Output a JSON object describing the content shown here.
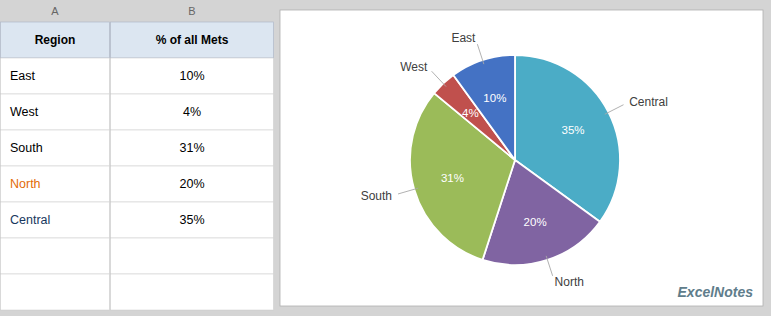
{
  "chart_data": [
    {
      "type": "table",
      "xlabel": "Region",
      "categories": [
        "East",
        "West",
        "South",
        "North",
        "Central"
      ],
      "series": [
        {
          "name": "% of all Mets",
          "values": [
            10,
            4,
            31,
            20,
            35
          ],
          "value_labels": [
            "10%",
            "4%",
            "31%",
            "20%",
            "35%"
          ]
        }
      ],
      "colors": [
        "#000000",
        "#000000",
        "#000000",
        "#E36C09",
        "#17375E"
      ],
      "annotations": [
        "A",
        "B"
      ]
    },
    {
      "type": "pie",
      "categories": [
        "Central",
        "North",
        "South",
        "West",
        "East"
      ],
      "values": [
        35,
        20,
        31,
        4,
        10
      ],
      "value_labels": [
        "35%",
        "20%",
        "31%",
        "4%",
        "10%"
      ],
      "colors": [
        "#4BACC6",
        "#8064A2",
        "#9BBB59",
        "#C0504D",
        "#4472C4"
      ],
      "data_labels": true,
      "annotations": [
        "ExcelNotes"
      ]
    }
  ]
}
